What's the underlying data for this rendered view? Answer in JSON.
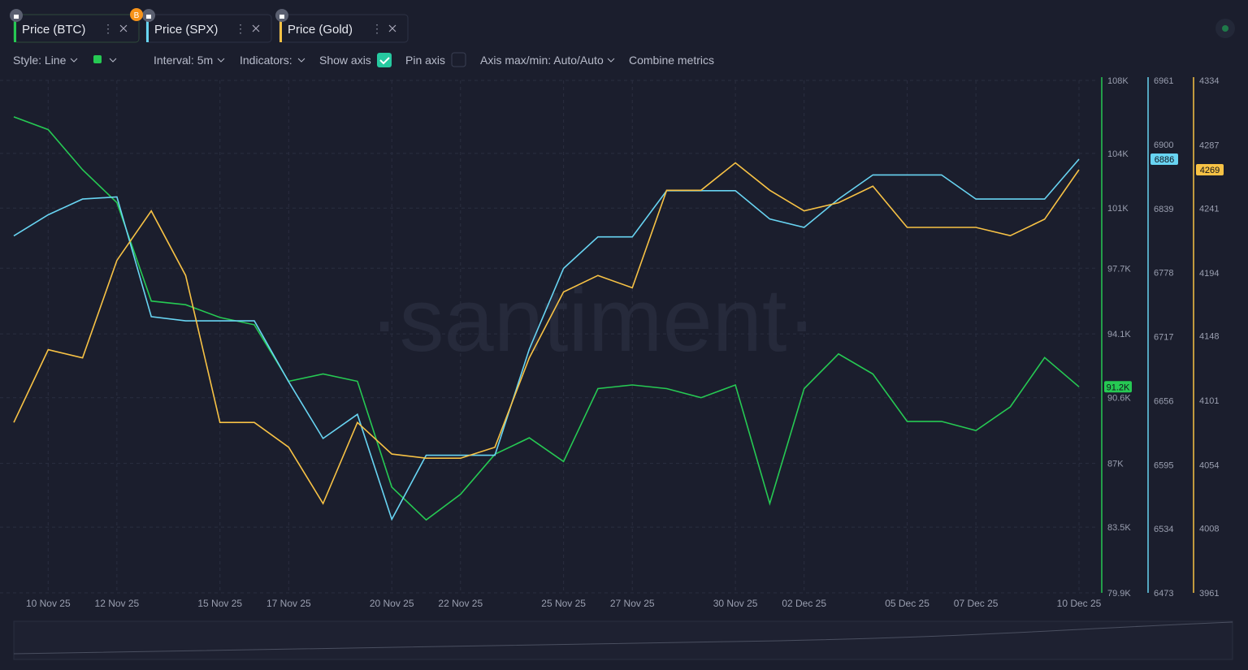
{
  "tabs": {
    "locked_badge": "B"
  },
  "toolbar": {
    "style": "Style: Line",
    "interval": "Interval: 5m",
    "indicators": "Indicators:",
    "show_axis": "Show axis",
    "pin_axis": "Pin axis",
    "axis_minmax": "Axis max/min: Auto/Auto",
    "combine": "Combine metrics"
  },
  "watermark": "·santiment·",
  "chart_data": {
    "type": "line",
    "x": [
      "2025-11-09",
      "2025-11-10",
      "2025-11-11",
      "2025-11-12",
      "2025-11-13",
      "2025-11-14",
      "2025-11-15",
      "2025-11-16",
      "2025-11-17",
      "2025-11-18",
      "2025-11-19",
      "2025-11-20",
      "2025-11-21",
      "2025-11-22",
      "2025-11-23",
      "2025-11-24",
      "2025-11-25",
      "2025-11-26",
      "2025-11-27",
      "2025-11-28",
      "2025-11-29",
      "2025-11-30",
      "2025-12-01",
      "2025-12-02",
      "2025-12-03",
      "2025-12-04",
      "2025-12-05",
      "2025-12-06",
      "2025-12-07",
      "2025-12-08",
      "2025-12-09",
      "2025-12-10"
    ],
    "xlim": [
      "2025-11-09",
      "2025-12-10"
    ],
    "xticks": [
      {
        "value": "2025-11-10",
        "label": "10 Nov 25"
      },
      {
        "value": "2025-11-12",
        "label": "12 Nov 25"
      },
      {
        "value": "2025-11-15",
        "label": "15 Nov 25"
      },
      {
        "value": "2025-11-17",
        "label": "17 Nov 25"
      },
      {
        "value": "2025-11-20",
        "label": "20 Nov 25"
      },
      {
        "value": "2025-11-22",
        "label": "22 Nov 25"
      },
      {
        "value": "2025-11-25",
        "label": "25 Nov 25"
      },
      {
        "value": "2025-11-27",
        "label": "27 Nov 25"
      },
      {
        "value": "2025-11-30",
        "label": "30 Nov 25"
      },
      {
        "value": "2025-12-02",
        "label": "02 Dec 25"
      },
      {
        "value": "2025-12-05",
        "label": "05 Dec 25"
      },
      {
        "value": "2025-12-07",
        "label": "07 Dec 25"
      },
      {
        "value": "2025-12-10",
        "label": "10 Dec 25"
      }
    ],
    "ylim": [
      79900,
      108000
    ],
    "yticks": [
      {
        "value": 79900,
        "label": "79.9K"
      },
      {
        "value": 83500,
        "label": "83.5K"
      },
      {
        "value": 87000,
        "label": "87K"
      },
      {
        "value": 90600,
        "label": "90.6K"
      },
      {
        "value": 94100,
        "label": "94.1K"
      },
      {
        "value": 97700,
        "label": "97.7K"
      },
      {
        "value": 101000,
        "label": "101K"
      },
      {
        "value": 104000,
        "label": "104K"
      },
      {
        "value": 108000,
        "label": "108K"
      }
    ],
    "y2lim": [
      6473,
      6961
    ],
    "y2ticks": [
      6473,
      6534,
      6595,
      6656,
      6717,
      6778,
      6839,
      6900,
      6961
    ],
    "y3lim": [
      3961,
      4334
    ],
    "y3ticks": [
      3961,
      4008,
      4054,
      4101,
      4148,
      4194,
      4241,
      4287,
      4334
    ],
    "grid": true,
    "series": [
      {
        "name": "Price (BTC)",
        "color": "#26c953",
        "axis": "y",
        "last_value_label": "91.2K",
        "values": [
          106000,
          105300,
          103100,
          101300,
          95900,
          95700,
          95000,
          94600,
          91500,
          91900,
          91500,
          85700,
          83900,
          85300,
          87500,
          88400,
          87100,
          91100,
          91300,
          91100,
          90600,
          91300,
          84800,
          91100,
          93000,
          91900,
          89300,
          89300,
          88800,
          90100,
          92800,
          91200
        ]
      },
      {
        "name": "Price (SPX)",
        "color": "#68d4f2",
        "axis": "y2",
        "last_value_label": "6886",
        "values": [
          6813,
          6833,
          6848,
          6850,
          6736,
          6732,
          6732,
          6732,
          6674,
          6620,
          6643,
          6543,
          6604,
          6604,
          6604,
          6705,
          6782,
          6812,
          6812,
          6856,
          6856,
          6856,
          6829,
          6821,
          6848,
          6871,
          6871,
          6871,
          6848,
          6848,
          6848,
          6886
        ]
      },
      {
        "name": "Price (Gold)",
        "color": "#f7c245",
        "axis": "y3",
        "last_value_label": "4269",
        "values": [
          4085,
          4138,
          4132,
          4203,
          4239,
          4192,
          4085,
          4085,
          4067,
          4026,
          4085,
          4062,
          4059,
          4059,
          4067,
          4132,
          4180,
          4192,
          4183,
          4254,
          4254,
          4274,
          4254,
          4239,
          4245,
          4257,
          4227,
          4227,
          4227,
          4221,
          4233,
          4269
        ]
      }
    ]
  }
}
